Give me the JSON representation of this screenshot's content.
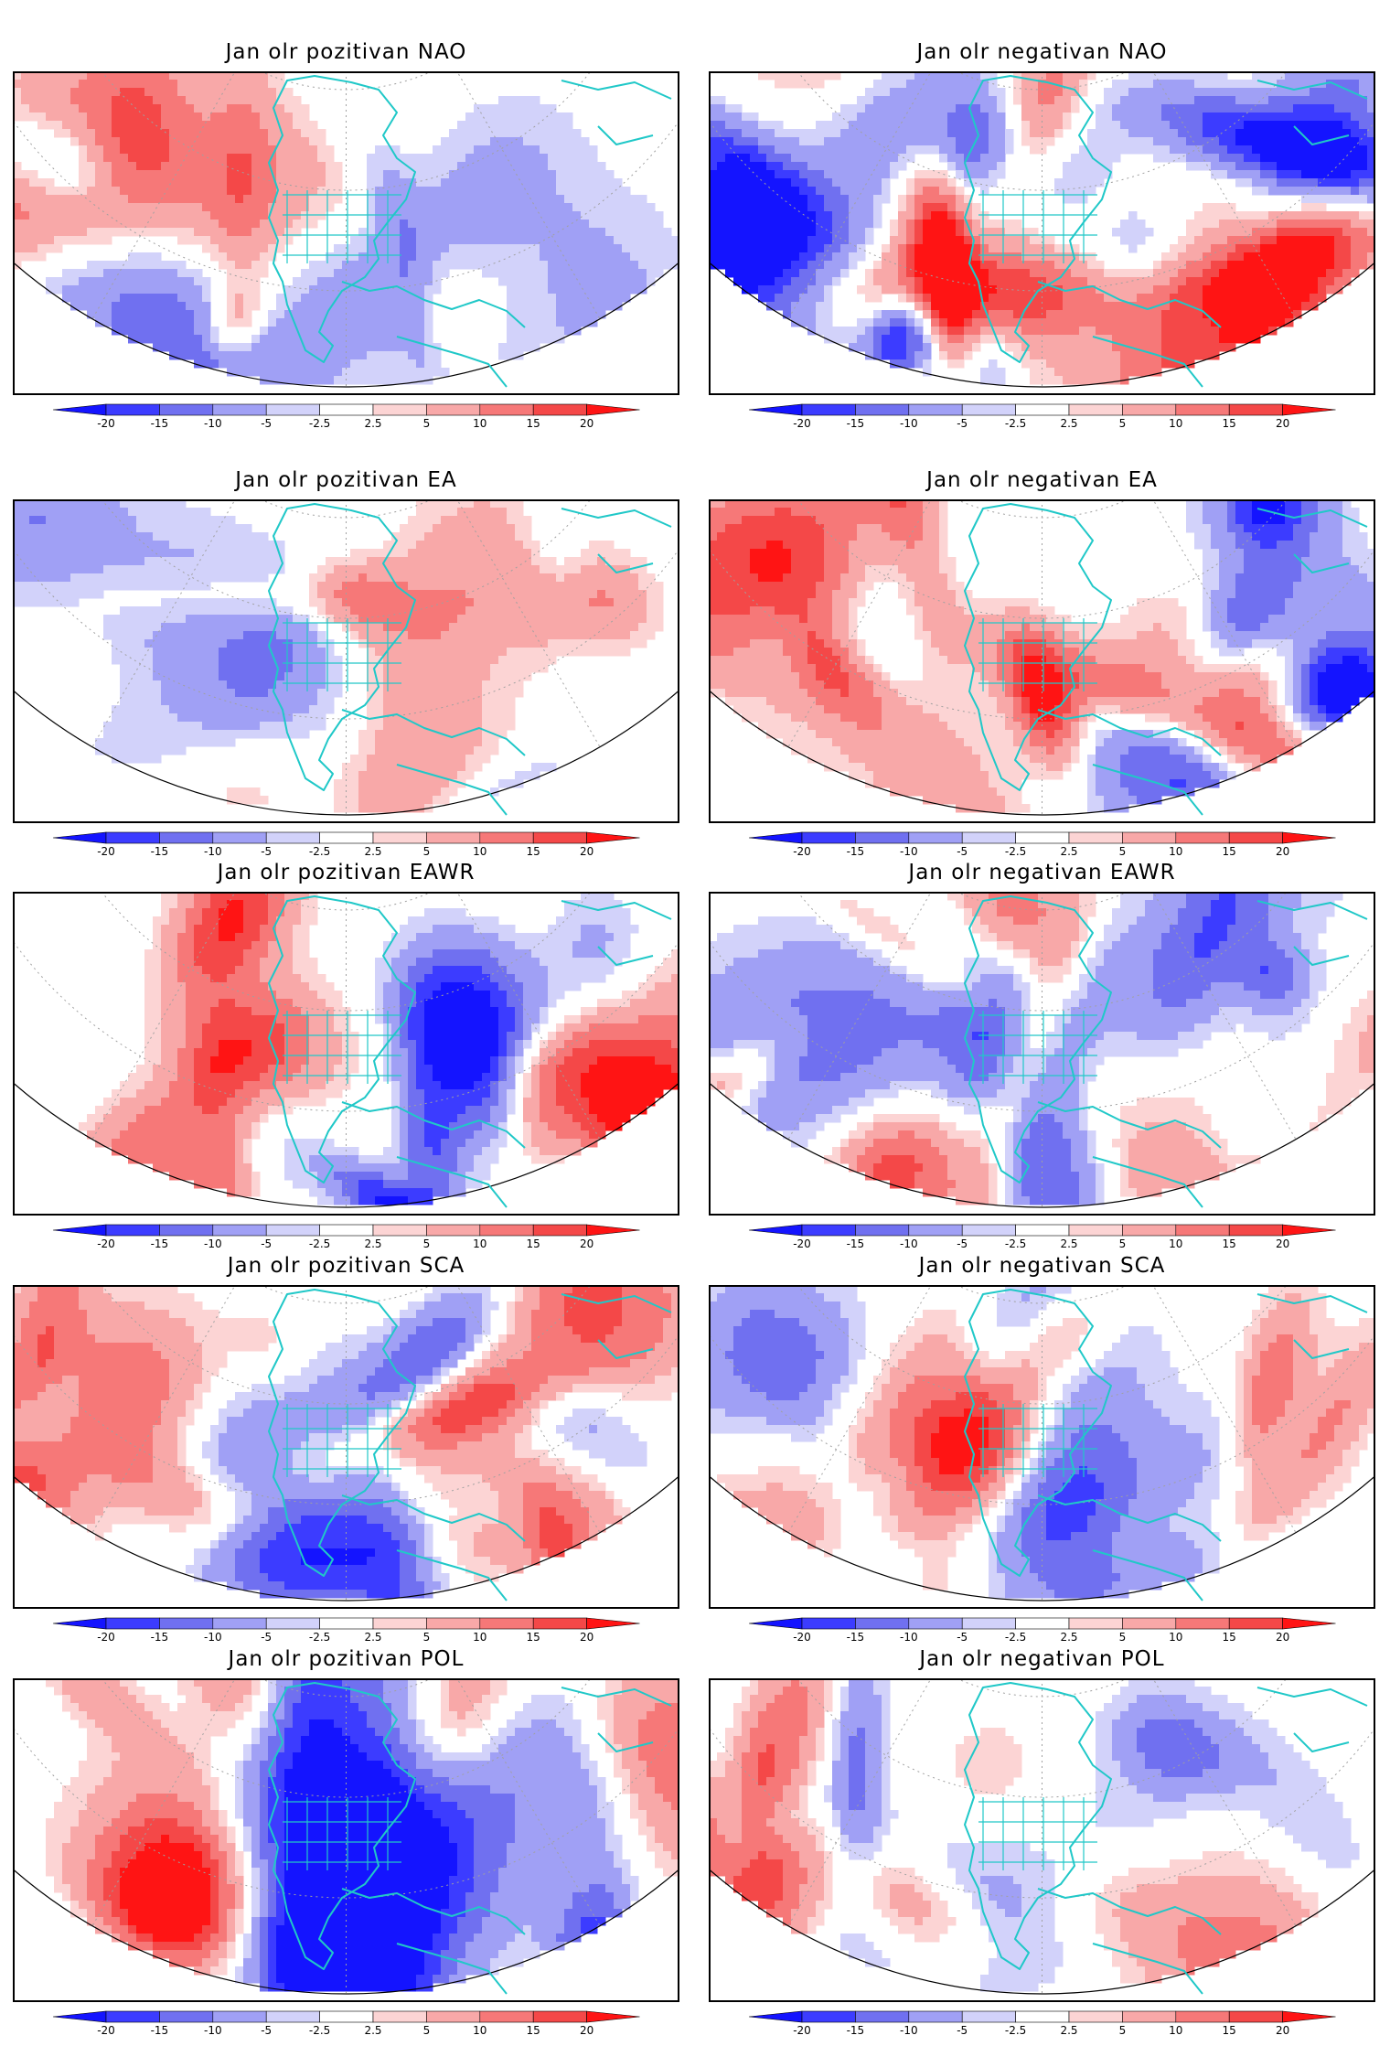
{
  "colorbar": {
    "levels": [
      "-20",
      "-15",
      "-10",
      "-5",
      "-2.5",
      "2.5",
      "5",
      "10",
      "15",
      "20"
    ],
    "colors": [
      "#1414ff",
      "#3c3cff",
      "#7070f0",
      "#a0a0f5",
      "#d2d2fa",
      "#ffffff",
      "#fcd4d4",
      "#f8a8a8",
      "#f67878",
      "#f44848",
      "#ff1414"
    ],
    "coastline_color": "#20c8c8",
    "grid_color": "#a0a0a0"
  },
  "panels": [
    {
      "title": "Jan olr pozitivan NAO",
      "pattern_seed": 3,
      "amplitude": 0.55
    },
    {
      "title": "Jan olr negativan NAO",
      "pattern_seed": 7,
      "amplitude": 0.95
    },
    {
      "title": "Jan olr pozitivan EA",
      "pattern_seed": 11,
      "amplitude": 0.45
    },
    {
      "title": "Jan olr negativan EA",
      "pattern_seed": 17,
      "amplitude": 1.0
    },
    {
      "title": "Jan olr pozitivan EAWR",
      "pattern_seed": 23,
      "amplitude": 0.95
    },
    {
      "title": "Jan olr negativan EAWR",
      "pattern_seed": 29,
      "amplitude": 0.6
    },
    {
      "title": "Jan olr pozitivan SCA",
      "pattern_seed": 31,
      "amplitude": 0.65
    },
    {
      "title": "Jan olr negativan SCA",
      "pattern_seed": 37,
      "amplitude": 0.75
    },
    {
      "title": "Jan olr pozitivan POL",
      "pattern_seed": 41,
      "amplitude": 1.0
    },
    {
      "title": "Jan olr negativan POL",
      "pattern_seed": 43,
      "amplitude": 0.6
    }
  ]
}
